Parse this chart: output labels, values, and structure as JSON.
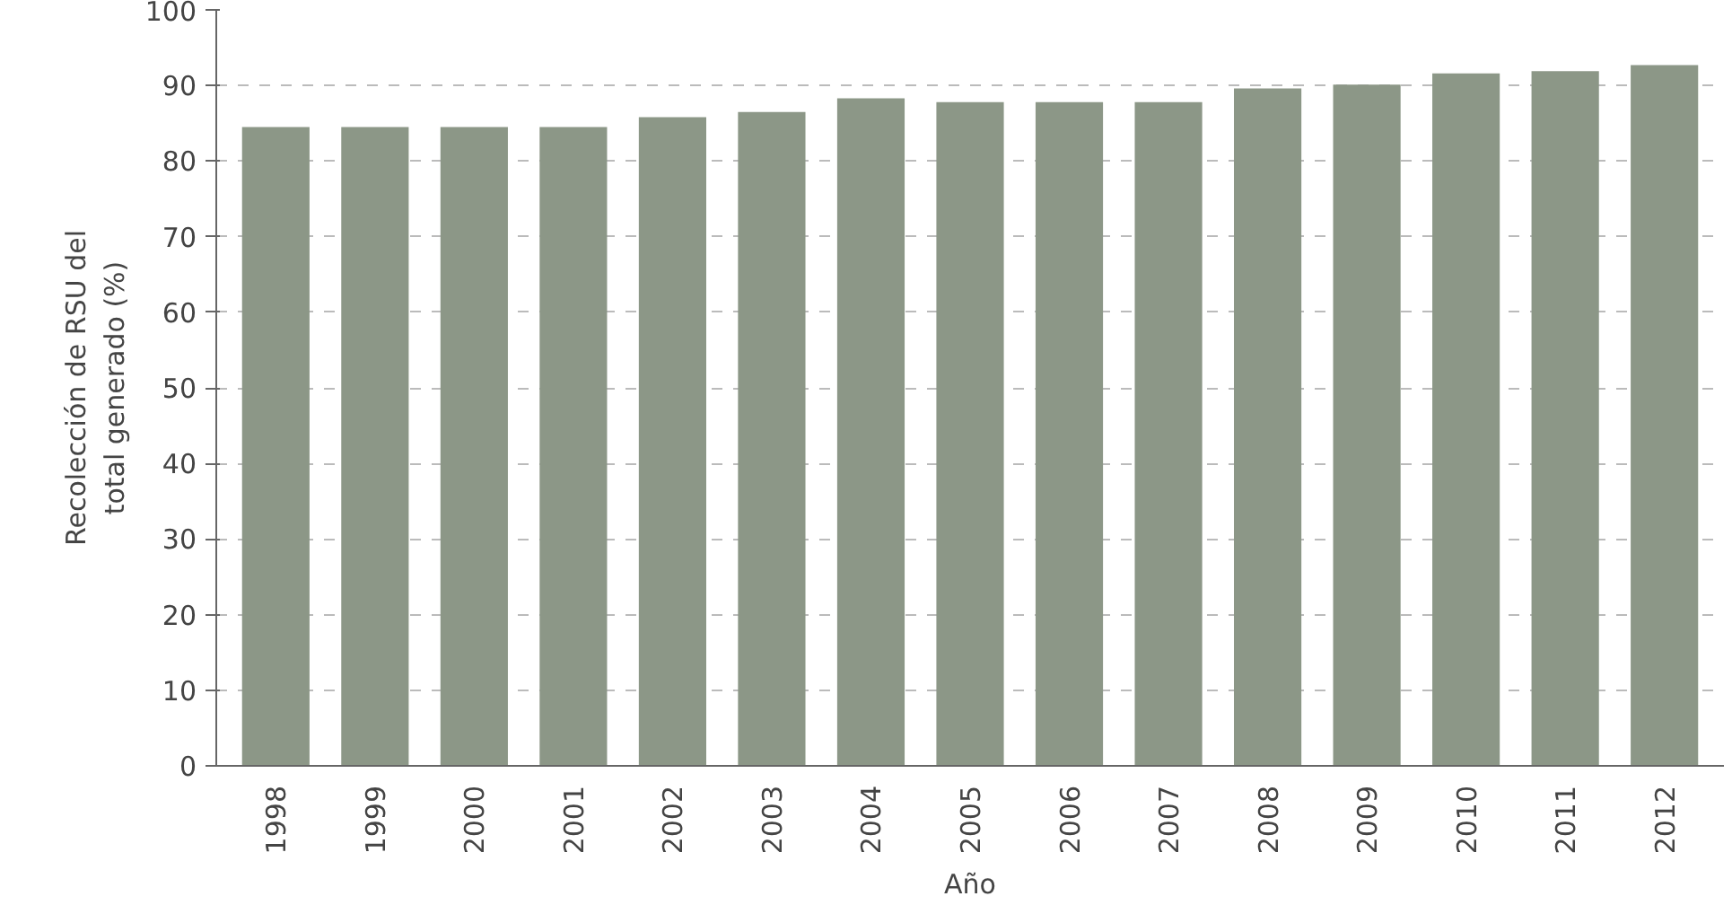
{
  "chart_data": {
    "type": "bar",
    "xlabel": "Año",
    "ylabel": "Recolección de RSU del\ntotal generado (%)",
    "categories": [
      "1998",
      "1999",
      "2000",
      "2001",
      "2002",
      "2003",
      "2004",
      "2005",
      "2006",
      "2007",
      "2008",
      "2009",
      "2010",
      "2011",
      "2012"
    ],
    "values": [
      84.5,
      84.5,
      84.5,
      84.5,
      85.8,
      86.5,
      88.3,
      87.8,
      87.8,
      87.8,
      89.6,
      90.1,
      91.6,
      91.9,
      92.7
    ],
    "color": "#8c9787",
    "ylim": [
      0,
      100
    ],
    "yticks": [
      0,
      10,
      20,
      30,
      40,
      50,
      60,
      70,
      80,
      90,
      100
    ],
    "grid": "y"
  }
}
